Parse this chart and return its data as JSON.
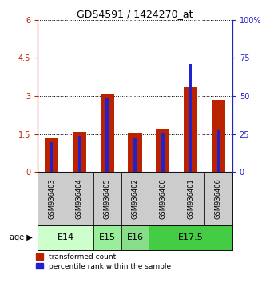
{
  "title": "GDS4591 / 1424270_at",
  "samples": [
    "GSM936403",
    "GSM936404",
    "GSM936405",
    "GSM936402",
    "GSM936400",
    "GSM936401",
    "GSM936406"
  ],
  "red_values": [
    1.35,
    1.6,
    3.05,
    1.55,
    1.7,
    3.35,
    2.85
  ],
  "blue_percentiles": [
    20,
    24,
    49,
    22,
    26,
    71,
    28
  ],
  "left_ylim": [
    0,
    6
  ],
  "right_ylim": [
    0,
    100
  ],
  "left_yticks": [
    0,
    1.5,
    3,
    4.5,
    6
  ],
  "left_yticklabels": [
    "0",
    "1.5",
    "3",
    "4.5",
    "6"
  ],
  "right_yticks": [
    0,
    25,
    50,
    75,
    100
  ],
  "right_yticklabels": [
    "0",
    "25",
    "50",
    "75",
    "100%"
  ],
  "red_color": "#bb2200",
  "blue_color": "#2222cc",
  "bar_width": 0.5,
  "ages": [
    {
      "label": "E14",
      "samples": [
        "GSM936403",
        "GSM936404"
      ],
      "color": "#ccffcc"
    },
    {
      "label": "E15",
      "samples": [
        "GSM936405"
      ],
      "color": "#99ee99"
    },
    {
      "label": "E16",
      "samples": [
        "GSM936402"
      ],
      "color": "#88dd88"
    },
    {
      "label": "E17.5",
      "samples": [
        "GSM936400",
        "GSM936401",
        "GSM936406"
      ],
      "color": "#44cc44"
    }
  ],
  "sample_bg_color": "#cccccc",
  "legend_red_label": "transformed count",
  "legend_blue_label": "percentile rank within the sample",
  "age_label": "age"
}
